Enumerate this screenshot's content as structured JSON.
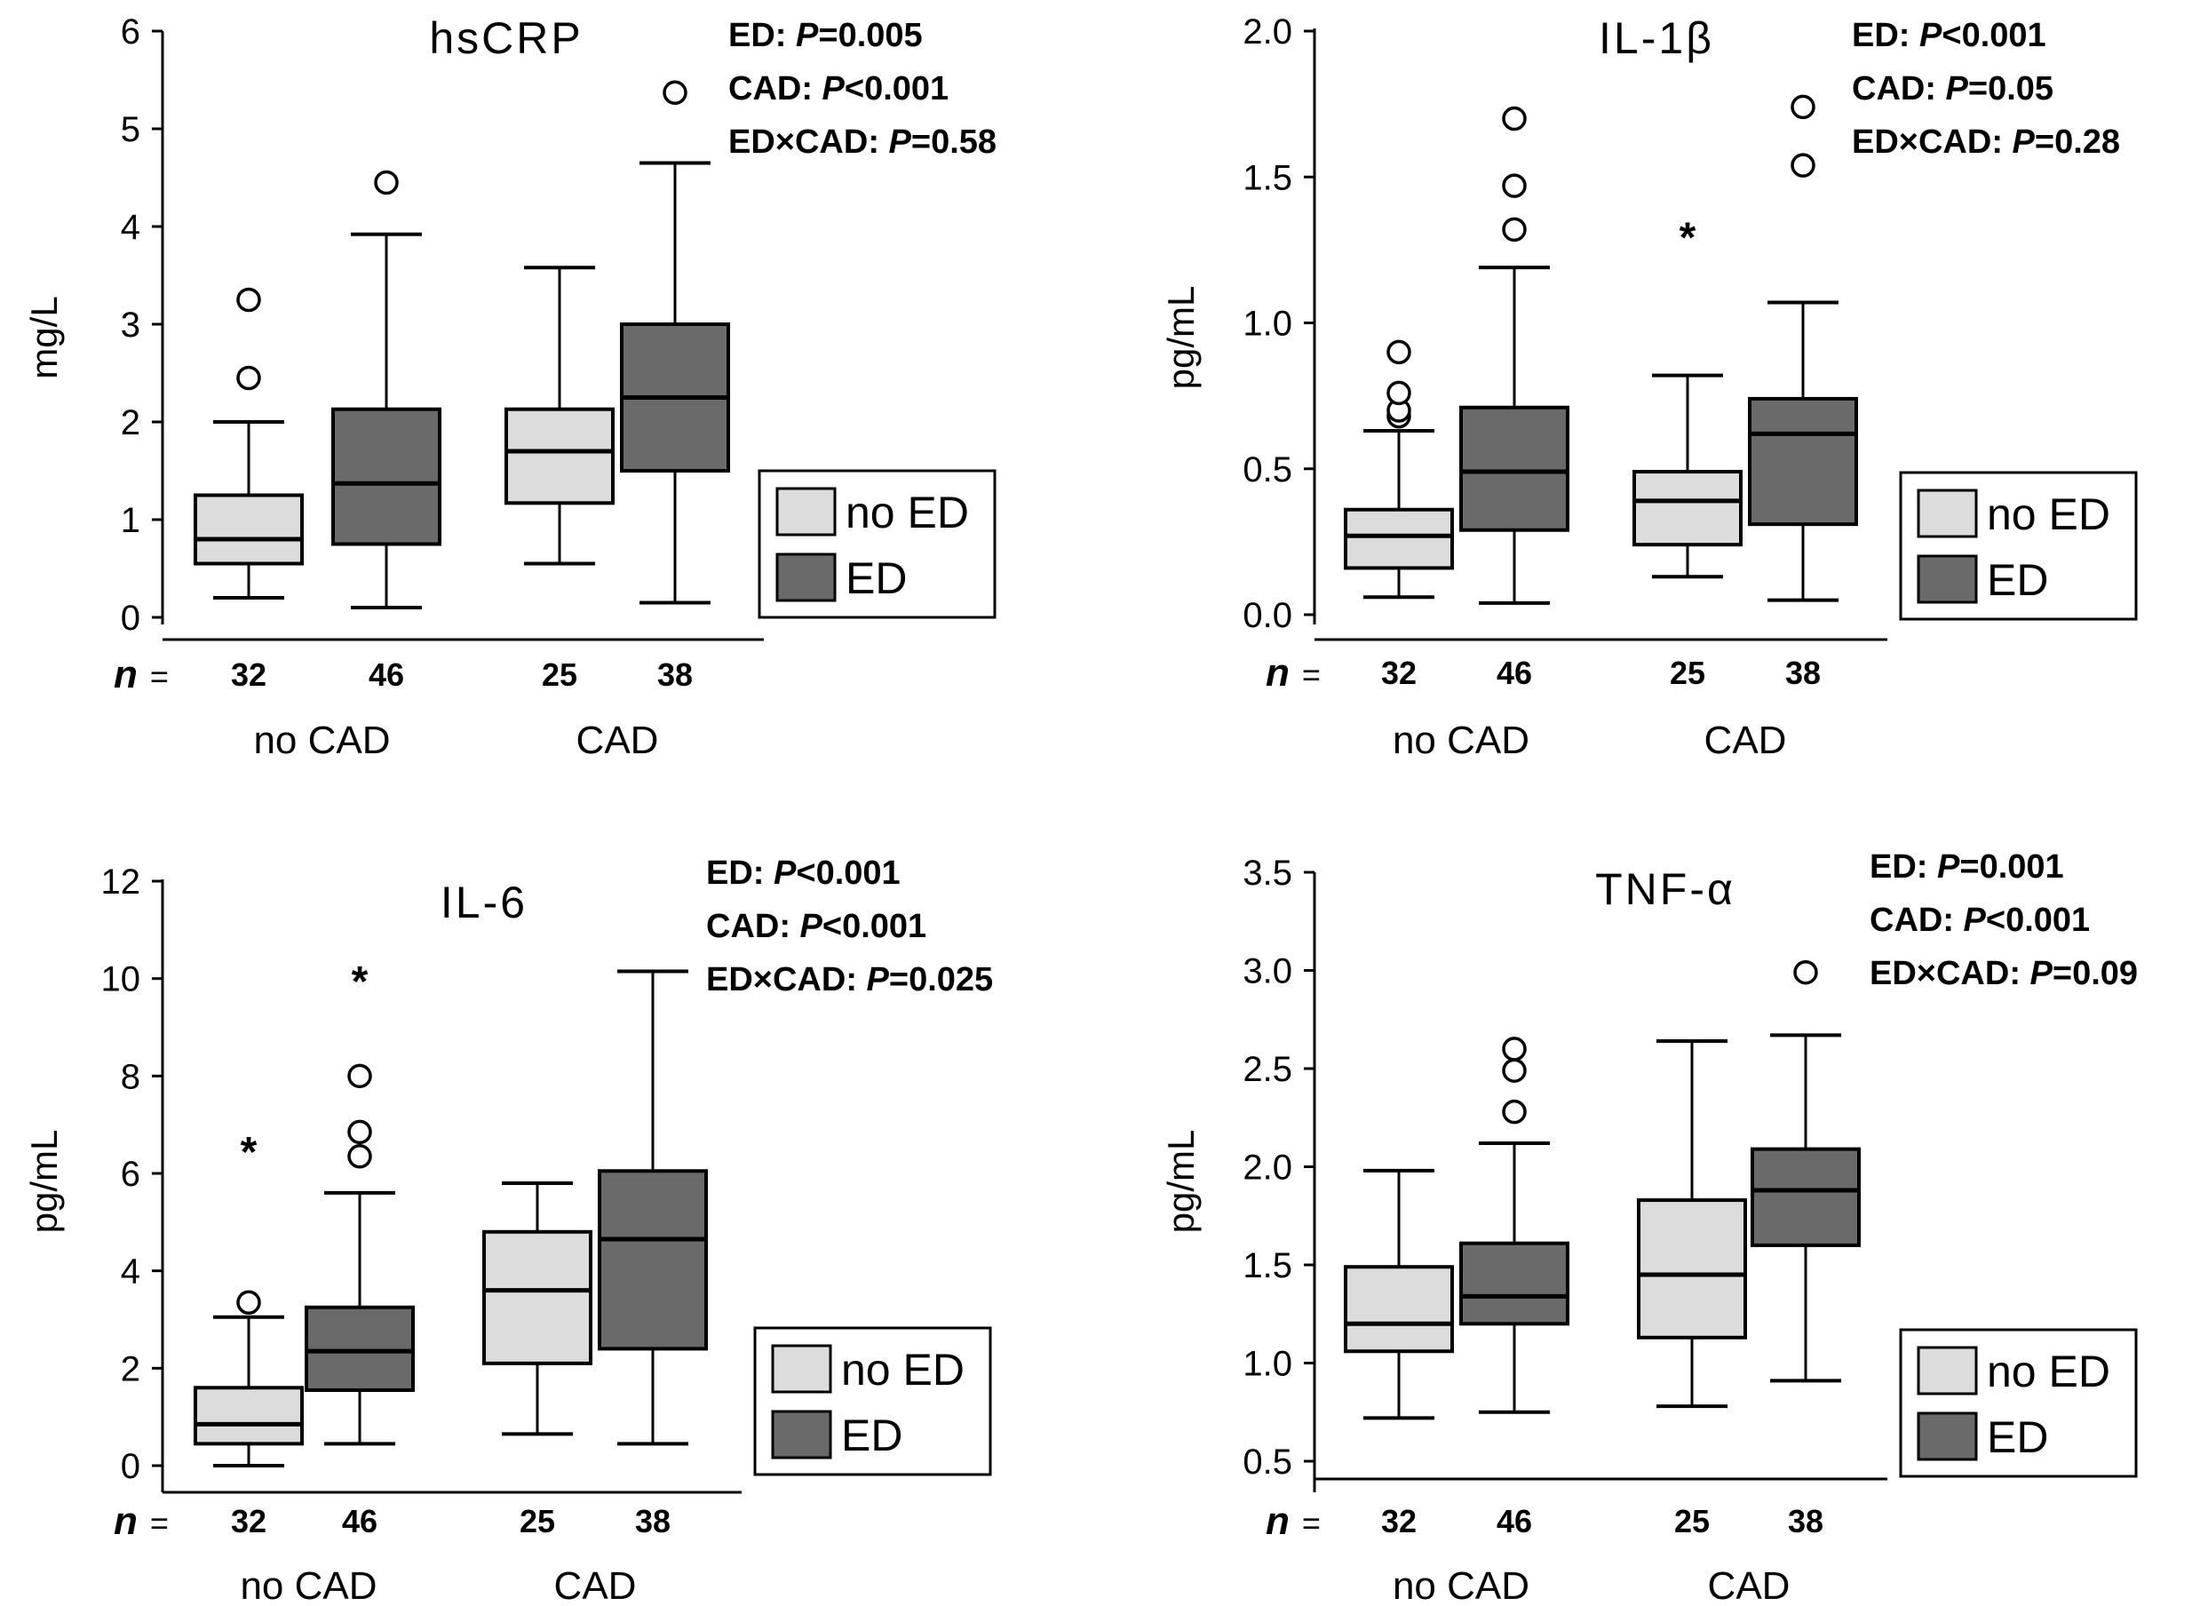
{
  "colors": {
    "no_ed": "#dcdcdc",
    "ed": "#6a6a6a",
    "line": "#000000"
  },
  "n_prefix": "n",
  "n_eq": "=",
  "group_labels": [
    "no CAD",
    "CAD"
  ],
  "legend": [
    "no ED",
    "ED"
  ],
  "chart_data": [
    {
      "type": "box",
      "title": "hsCRP",
      "ylabel": "mg/L",
      "ylim": [
        0,
        6
      ],
      "yticks": [
        "0",
        "1",
        "2",
        "3",
        "4",
        "5",
        "6"
      ],
      "ytick_values": [
        0,
        1,
        2,
        3,
        4,
        5,
        6
      ],
      "stats": [
        {
          "label": "ED",
          "sep": ": ",
          "p": "P",
          "op": "=0.005"
        },
        {
          "label": "CAD",
          "sep": ": ",
          "p": "P",
          "op": "<0.001"
        },
        {
          "label": "ED×CAD",
          "sep": ": ",
          "p": "P",
          "op": "=0.58"
        }
      ],
      "boxes": [
        {
          "group": "no CAD",
          "series": "no ED",
          "n": "32",
          "whisker_low": 0.2,
          "q1": 0.55,
          "median": 0.8,
          "q3": 1.25,
          "whisker_high": 2.0,
          "outliers": [
            2.45,
            3.25
          ],
          "extremes": []
        },
        {
          "group": "no CAD",
          "series": "ED",
          "n": "46",
          "whisker_low": 0.1,
          "q1": 0.75,
          "median": 1.37,
          "q3": 2.13,
          "whisker_high": 3.92,
          "outliers": [
            4.45
          ],
          "extremes": []
        },
        {
          "group": "CAD",
          "series": "no ED",
          "n": "25",
          "whisker_low": 0.55,
          "q1": 1.17,
          "median": 1.7,
          "q3": 2.13,
          "whisker_high": 3.58,
          "outliers": [],
          "extremes": []
        },
        {
          "group": "CAD",
          "series": "ED",
          "n": "38",
          "whisker_low": 0.15,
          "q1": 1.5,
          "median": 2.25,
          "q3": 3.0,
          "whisker_high": 4.65,
          "outliers": [
            5.37
          ],
          "extremes": []
        }
      ]
    },
    {
      "type": "box",
      "title": "IL-1β",
      "ylabel": "pg/mL",
      "ylim": [
        0,
        2.0
      ],
      "yticks": [
        "0.0",
        "0.5",
        "1.0",
        "1.5",
        "2.0"
      ],
      "ytick_values": [
        0,
        0.5,
        1.0,
        1.5,
        2.0
      ],
      "stats": [
        {
          "label": "ED",
          "sep": ": ",
          "p": "P",
          "op": "<0.001"
        },
        {
          "label": "CAD",
          "sep": ": ",
          "p": "P",
          "op": "=0.05"
        },
        {
          "label": "ED×CAD",
          "sep": ": ",
          "p": "P",
          "op": "=0.28"
        }
      ],
      "boxes": [
        {
          "group": "no CAD",
          "series": "no ED",
          "n": "32",
          "whisker_low": 0.06,
          "q1": 0.16,
          "median": 0.27,
          "q3": 0.36,
          "whisker_high": 0.63,
          "outliers": [
            0.68,
            0.7,
            0.76,
            0.9
          ],
          "extremes": []
        },
        {
          "group": "no CAD",
          "series": "ED",
          "n": "46",
          "whisker_low": 0.04,
          "q1": 0.29,
          "median": 0.49,
          "q3": 0.71,
          "whisker_high": 1.19,
          "outliers": [
            1.32,
            1.47,
            1.7
          ],
          "extremes": []
        },
        {
          "group": "CAD",
          "series": "no ED",
          "n": "25",
          "whisker_low": 0.13,
          "q1": 0.24,
          "median": 0.39,
          "q3": 0.49,
          "whisker_high": 0.82,
          "outliers": [],
          "extremes": [
            1.31
          ]
        },
        {
          "group": "CAD",
          "series": "ED",
          "n": "38",
          "whisker_low": 0.05,
          "q1": 0.31,
          "median": 0.62,
          "q3": 0.74,
          "whisker_high": 1.07,
          "outliers": [
            1.54,
            1.74
          ],
          "extremes": []
        }
      ]
    },
    {
      "type": "box",
      "title": "IL-6",
      "ylabel": "pg/mL",
      "ylim": [
        0,
        12
      ],
      "yticks": [
        "0",
        "2",
        "4",
        "6",
        "8",
        "10",
        "12"
      ],
      "ytick_values": [
        0,
        2,
        4,
        6,
        8,
        10,
        12
      ],
      "stats": [
        {
          "label": "ED",
          "sep": ": ",
          "p": "P",
          "op": "<0.001"
        },
        {
          "label": "CAD",
          "sep": ": ",
          "p": "P",
          "op": "<0.001"
        },
        {
          "label": "ED×CAD",
          "sep": ": ",
          "p": "P",
          "op": "=0.025"
        }
      ],
      "boxes": [
        {
          "group": "no CAD",
          "series": "no ED",
          "n": "32",
          "whisker_low": 0.0,
          "q1": 0.45,
          "median": 0.85,
          "q3": 1.6,
          "whisker_high": 3.05,
          "outliers": [
            3.35
          ],
          "extremes": [
            6.55
          ]
        },
        {
          "group": "no CAD",
          "series": "ED",
          "n": "46",
          "whisker_low": 0.45,
          "q1": 1.55,
          "median": 2.35,
          "q3": 3.25,
          "whisker_high": 5.6,
          "outliers": [
            6.35,
            6.85,
            8.0
          ],
          "extremes": [
            10.05
          ]
        },
        {
          "group": "CAD",
          "series": "no ED",
          "n": "25",
          "whisker_low": 0.65,
          "q1": 2.1,
          "median": 3.6,
          "q3": 4.8,
          "whisker_high": 5.8,
          "outliers": [],
          "extremes": []
        },
        {
          "group": "CAD",
          "series": "ED",
          "n": "38",
          "whisker_low": 0.45,
          "q1": 2.4,
          "median": 4.65,
          "q3": 6.05,
          "whisker_high": 10.15,
          "outliers": [],
          "extremes": []
        }
      ]
    },
    {
      "type": "box",
      "title": "TNF-α",
      "ylabel": "pg/mL",
      "ylim": [
        0.5,
        3.5
      ],
      "yticks": [
        "0.5",
        "1.0",
        "1.5",
        "2.0",
        "2.5",
        "3.0",
        "3.5"
      ],
      "ytick_values": [
        0.5,
        1.0,
        1.5,
        2.0,
        2.5,
        3.0,
        3.5
      ],
      "stats": [
        {
          "label": "ED",
          "sep": ": ",
          "p": "P",
          "op": "=0.001"
        },
        {
          "label": "CAD",
          "sep": ": ",
          "p": "P",
          "op": "<0.001"
        },
        {
          "label": "ED×CAD",
          "sep": ": ",
          "p": "P",
          "op": "=0.09"
        }
      ],
      "boxes": [
        {
          "group": "no CAD",
          "series": "no ED",
          "n": "32",
          "whisker_low": 0.72,
          "q1": 1.06,
          "median": 1.2,
          "q3": 1.49,
          "whisker_high": 1.98,
          "outliers": [],
          "extremes": []
        },
        {
          "group": "no CAD",
          "series": "ED",
          "n": "46",
          "whisker_low": 0.75,
          "q1": 1.2,
          "median": 1.34,
          "q3": 1.61,
          "whisker_high": 2.12,
          "outliers": [
            2.28,
            2.49,
            2.6
          ],
          "extremes": []
        },
        {
          "group": "CAD",
          "series": "no ED",
          "n": "25",
          "whisker_low": 0.78,
          "q1": 1.13,
          "median": 1.45,
          "q3": 1.83,
          "whisker_high": 2.64,
          "outliers": [],
          "extremes": []
        },
        {
          "group": "CAD",
          "series": "ED",
          "n": "38",
          "whisker_low": 0.91,
          "q1": 1.6,
          "median": 1.88,
          "q3": 2.09,
          "whisker_high": 2.67,
          "outliers": [
            2.99
          ],
          "extremes": []
        }
      ]
    }
  ]
}
